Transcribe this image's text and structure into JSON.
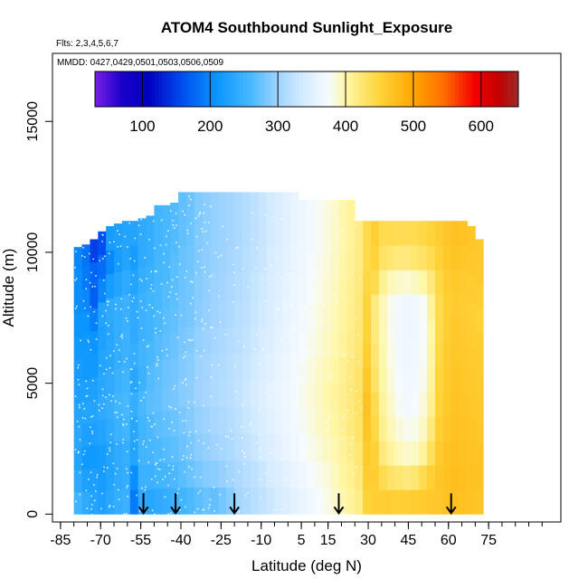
{
  "chart_data": {
    "type": "heatmap",
    "title": "ATOM4 Southbound Sunlight_Exposure",
    "flights_label": "Flts: 2,3,4,5,6,7",
    "dates_label": "MMDD: 0427,0429,0501,0503,0506,0509",
    "xlabel": "Latitude (deg N)",
    "ylabel": "Altitude (m)",
    "xlim": [
      -88,
      102
    ],
    "ylim": [
      -300,
      17600
    ],
    "x_ticks": [
      -85,
      -70,
      -55,
      -40,
      -25,
      -10,
      5,
      15,
      30,
      45,
      60,
      75
    ],
    "x_minor_ticks": [
      -85,
      -80,
      -75,
      -70,
      -65,
      -60,
      -55,
      -50,
      -45,
      -40,
      -35,
      -30,
      -25,
      -20,
      -15,
      -10,
      -5,
      0,
      5,
      10,
      15,
      20,
      25,
      30,
      35,
      40,
      45,
      50,
      55,
      60,
      65,
      70,
      75,
      80,
      85,
      90,
      95
    ],
    "y_ticks": [
      0,
      5000,
      10000,
      15000
    ],
    "colorbar": {
      "min": 30,
      "max": 655,
      "ticks": [
        100,
        200,
        300,
        400,
        500,
        600
      ],
      "stops": [
        {
          "value": 30,
          "color": "#7a1fe8"
        },
        {
          "value": 70,
          "color": "#1a00c8"
        },
        {
          "value": 110,
          "color": "#0000c0"
        },
        {
          "value": 160,
          "color": "#0050f0"
        },
        {
          "value": 210,
          "color": "#0a96ff"
        },
        {
          "value": 260,
          "color": "#48b8ff"
        },
        {
          "value": 300,
          "color": "#a0d4ff"
        },
        {
          "value": 340,
          "color": "#d6ecff"
        },
        {
          "value": 375,
          "color": "#f6fbff"
        },
        {
          "value": 400,
          "color": "#fff7a8"
        },
        {
          "value": 450,
          "color": "#ffd43a"
        },
        {
          "value": 500,
          "color": "#ffa600"
        },
        {
          "value": 545,
          "color": "#ff6e00"
        },
        {
          "value": 590,
          "color": "#f40000"
        },
        {
          "value": 625,
          "color": "#c40000"
        },
        {
          "value": 655,
          "color": "#9c2a2a"
        }
      ]
    },
    "latitude_bins": [
      {
        "lat": [
          -80,
          -77
        ],
        "top": 10200,
        "values": [
          255,
          240,
          230,
          235,
          230,
          225,
          220,
          215,
          210,
          205,
          205,
          200
        ]
      },
      {
        "lat": [
          -77,
          -74
        ],
        "top": 10300,
        "values": [
          240,
          225,
          215,
          225,
          230,
          225,
          215,
          215,
          210,
          200,
          190,
          185
        ]
      },
      {
        "lat": [
          -74,
          -71
        ],
        "top": 10500,
        "values": [
          230,
          225,
          215,
          225,
          230,
          225,
          215,
          210,
          195,
          170,
          175,
          150
        ]
      },
      {
        "lat": [
          -71,
          -68
        ],
        "top": 10800,
        "values": [
          225,
          220,
          220,
          230,
          240,
          235,
          230,
          225,
          230,
          200,
          180,
          160
        ]
      },
      {
        "lat": [
          -68,
          -65
        ],
        "top": 11000,
        "values": [
          235,
          230,
          230,
          240,
          245,
          240,
          235,
          235,
          240,
          220,
          200,
          220
        ]
      },
      {
        "lat": [
          -65,
          -62
        ],
        "top": 11100,
        "values": [
          245,
          240,
          240,
          250,
          255,
          250,
          245,
          245,
          245,
          230,
          220,
          225
        ]
      },
      {
        "lat": [
          -62,
          -59
        ],
        "top": 11200,
        "values": [
          250,
          245,
          245,
          255,
          260,
          255,
          250,
          250,
          250,
          240,
          230,
          230
        ]
      },
      {
        "lat": [
          -59,
          -56
        ],
        "top": 11200,
        "values": [
          190,
          205,
          230,
          235,
          245,
          235,
          245,
          240,
          240,
          230,
          220,
          230
        ]
      },
      {
        "lat": [
          -56,
          -53
        ],
        "top": 11300,
        "values": [
          240,
          250,
          255,
          255,
          260,
          250,
          255,
          250,
          250,
          245,
          240,
          240
        ]
      },
      {
        "lat": [
          -53,
          -50
        ],
        "top": 11400,
        "values": [
          235,
          250,
          258,
          262,
          268,
          265,
          260,
          255,
          255,
          250,
          245,
          245
        ]
      },
      {
        "lat": [
          -50,
          -47
        ],
        "top": 11800,
        "values": [
          240,
          255,
          262,
          268,
          272,
          270,
          266,
          262,
          260,
          258,
          255,
          255
        ]
      },
      {
        "lat": [
          -47,
          -44
        ],
        "top": 11800,
        "values": [
          245,
          258,
          266,
          272,
          278,
          276,
          272,
          268,
          266,
          262,
          260,
          260
        ]
      },
      {
        "lat": [
          -44,
          -41
        ],
        "top": 11900,
        "values": [
          250,
          262,
          270,
          276,
          282,
          280,
          276,
          272,
          270,
          268,
          265,
          265
        ]
      },
      {
        "lat": [
          -41,
          -38
        ],
        "top": 12300,
        "values": [
          255,
          268,
          276,
          282,
          288,
          286,
          282,
          278,
          276,
          274,
          272,
          272
        ]
      },
      {
        "lat": [
          -38,
          -35
        ],
        "top": 12300,
        "values": [
          262,
          275,
          282,
          288,
          292,
          290,
          286,
          282,
          280,
          278,
          276,
          276
        ]
      },
      {
        "lat": [
          -35,
          -32
        ],
        "top": 12300,
        "values": [
          268,
          282,
          290,
          295,
          300,
          298,
          294,
          290,
          288,
          286,
          285,
          285
        ]
      },
      {
        "lat": [
          -32,
          -29
        ],
        "top": 12300,
        "values": [
          275,
          288,
          295,
          300,
          305,
          302,
          298,
          295,
          293,
          292,
          290,
          290
        ]
      },
      {
        "lat": [
          -29,
          -26
        ],
        "top": 12300,
        "values": [
          272,
          290,
          300,
          306,
          310,
          308,
          304,
          300,
          298,
          296,
          295,
          295
        ]
      },
      {
        "lat": [
          -26,
          -23
        ],
        "top": 12300,
        "values": [
          280,
          296,
          305,
          310,
          315,
          312,
          308,
          305,
          302,
          300,
          298,
          298
        ]
      },
      {
        "lat": [
          -23,
          -20
        ],
        "top": 12300,
        "values": [
          290,
          302,
          310,
          315,
          320,
          318,
          314,
          310,
          308,
          305,
          302,
          302
        ]
      },
      {
        "lat": [
          -20,
          -17
        ],
        "top": 12300,
        "values": [
          305,
          310,
          318,
          322,
          326,
          324,
          320,
          316,
          314,
          310,
          308,
          308
        ]
      },
      {
        "lat": [
          -17,
          -14
        ],
        "top": 12300,
        "values": [
          310,
          316,
          324,
          330,
          334,
          330,
          326,
          322,
          320,
          318,
          315,
          315
        ]
      },
      {
        "lat": [
          -14,
          -11
        ],
        "top": 12300,
        "values": [
          318,
          324,
          332,
          338,
          342,
          338,
          334,
          330,
          328,
          325,
          322,
          322
        ]
      },
      {
        "lat": [
          -11,
          -8
        ],
        "top": 12300,
        "values": [
          325,
          332,
          340,
          345,
          350,
          346,
          342,
          338,
          335,
          332,
          330,
          330
        ]
      },
      {
        "lat": [
          -8,
          -5
        ],
        "top": 12300,
        "values": [
          332,
          340,
          348,
          352,
          356,
          352,
          348,
          345,
          342,
          340,
          338,
          338
        ]
      },
      {
        "lat": [
          -5,
          -2
        ],
        "top": 12300,
        "values": [
          340,
          348,
          355,
          360,
          362,
          360,
          356,
          352,
          350,
          348,
          345,
          345
        ]
      },
      {
        "lat": [
          -2,
          1
        ],
        "top": 12300,
        "values": [
          348,
          355,
          362,
          366,
          368,
          366,
          362,
          360,
          358,
          355,
          352,
          352
        ]
      },
      {
        "lat": [
          1,
          4
        ],
        "top": 12300,
        "values": [
          355,
          362,
          368,
          372,
          374,
          372,
          368,
          366,
          364,
          362,
          360,
          360
        ]
      },
      {
        "lat": [
          4,
          7
        ],
        "top": 12000,
        "values": [
          362,
          368,
          374,
          378,
          380,
          378,
          375,
          372,
          370,
          368,
          365,
          365
        ]
      },
      {
        "lat": [
          7,
          10
        ],
        "top": 12000,
        "values": [
          368,
          374,
          380,
          384,
          386,
          384,
          380,
          378,
          376,
          374,
          372,
          372
        ]
      },
      {
        "lat": [
          10,
          13
        ],
        "top": 12000,
        "values": [
          375,
          380,
          386,
          390,
          392,
          390,
          386,
          384,
          382,
          380,
          378,
          378
        ]
      },
      {
        "lat": [
          13,
          16
        ],
        "top": 12000,
        "values": [
          382,
          386,
          392,
          396,
          398,
          396,
          392,
          390,
          388,
          386,
          384,
          384
        ]
      },
      {
        "lat": [
          16,
          19
        ],
        "top": 12000,
        "values": [
          390,
          394,
          398,
          402,
          405,
          402,
          398,
          396,
          394,
          392,
          390,
          390
        ]
      },
      {
        "lat": [
          19,
          22
        ],
        "top": 12000,
        "values": [
          398,
          402,
          406,
          410,
          412,
          410,
          406,
          404,
          402,
          400,
          398,
          398
        ]
      },
      {
        "lat": [
          22,
          25
        ],
        "top": 12000,
        "values": [
          405,
          410,
          414,
          418,
          420,
          418,
          414,
          412,
          410,
          408,
          406,
          406
        ]
      },
      {
        "lat": [
          25,
          28
        ],
        "top": 11200,
        "values": [
          415,
          420,
          424,
          428,
          430,
          428,
          424,
          422,
          420,
          418,
          416,
          416
        ]
      },
      {
        "lat": [
          28,
          31
        ],
        "top": 11200,
        "values": [
          450,
          455,
          460,
          465,
          468,
          462,
          455,
          450,
          448,
          445,
          442,
          442
        ]
      },
      {
        "lat": [
          31,
          34
        ],
        "top": 11200,
        "values": [
          455,
          455,
          452,
          445,
          440,
          430,
          425,
          420,
          418,
          440,
          450,
          455
        ]
      },
      {
        "lat": [
          34,
          37
        ],
        "top": 11200,
        "values": [
          455,
          440,
          420,
          410,
          405,
          400,
          398,
          396,
          395,
          410,
          430,
          440
        ]
      },
      {
        "lat": [
          37,
          40
        ],
        "top": 11200,
        "values": [
          455,
          430,
          405,
          395,
          390,
          385,
          382,
          380,
          380,
          395,
          425,
          440
        ]
      },
      {
        "lat": [
          40,
          43
        ],
        "top": 11200,
        "values": [
          455,
          425,
          395,
          385,
          378,
          375,
          372,
          370,
          372,
          390,
          420,
          438
        ]
      },
      {
        "lat": [
          43,
          46
        ],
        "top": 11200,
        "values": [
          455,
          420,
          390,
          380,
          372,
          370,
          368,
          366,
          368,
          388,
          420,
          438
        ]
      },
      {
        "lat": [
          46,
          49
        ],
        "top": 11200,
        "values": [
          458,
          425,
          392,
          382,
          375,
          372,
          370,
          368,
          370,
          392,
          425,
          440
        ]
      },
      {
        "lat": [
          49,
          52
        ],
        "top": 11200,
        "values": [
          460,
          440,
          405,
          392,
          385,
          380,
          378,
          376,
          378,
          400,
          430,
          445
        ]
      },
      {
        "lat": [
          52,
          55
        ],
        "top": 11200,
        "values": [
          462,
          455,
          435,
          420,
          410,
          405,
          402,
          400,
          405,
          420,
          440,
          450
        ]
      },
      {
        "lat": [
          55,
          58
        ],
        "top": 11200,
        "values": [
          465,
          465,
          460,
          455,
          450,
          448,
          445,
          442,
          440,
          445,
          452,
          458
        ]
      },
      {
        "lat": [
          58,
          61
        ],
        "top": 11200,
        "values": [
          470,
          470,
          468,
          465,
          462,
          460,
          458,
          456,
          455,
          458,
          462,
          465
        ]
      },
      {
        "lat": [
          61,
          64
        ],
        "top": 11200,
        "values": [
          472,
          474,
          472,
          470,
          468,
          466,
          464,
          462,
          460,
          462,
          466,
          470
        ]
      },
      {
        "lat": [
          64,
          67
        ],
        "top": 11200,
        "values": [
          470,
          472,
          470,
          468,
          466,
          464,
          462,
          460,
          458,
          460,
          465,
          468
        ]
      },
      {
        "lat": [
          67,
          70
        ],
        "top": 11000,
        "values": [
          468,
          470,
          468,
          466,
          464,
          462,
          460,
          458,
          455,
          458,
          462,
          465
        ]
      },
      {
        "lat": [
          70,
          73
        ],
        "top": 10500,
        "values": [
          465,
          468,
          466,
          464,
          462,
          460,
          458,
          456,
          452,
          455,
          460,
          462
        ]
      }
    ],
    "markers": [
      {
        "lat": -54,
        "alt": 0
      },
      {
        "lat": -42,
        "alt": 0
      },
      {
        "lat": -20,
        "alt": 0
      },
      {
        "lat": 19,
        "alt": 0
      },
      {
        "lat": 61,
        "alt": 0
      }
    ]
  }
}
